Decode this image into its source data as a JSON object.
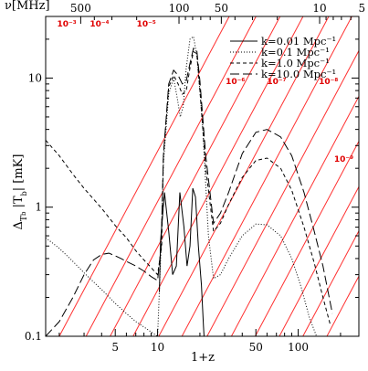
{
  "chart_data": {
    "type": "line",
    "xlabel": "1+z",
    "ylabel": "Δ_T_b |T_b| [mK]",
    "top_axis_label": "ν[MHz]",
    "xscale": "log",
    "yscale": "log",
    "xlim": [
      1.6,
      270
    ],
    "ylim": [
      0.1,
      30
    ],
    "x_ticks": [
      5,
      10,
      50,
      100
    ],
    "y_ticks": [
      0.1,
      1,
      10
    ],
    "y_tick_labels": [
      "0.1",
      "1",
      "10"
    ],
    "top_ticks": [
      500,
      100,
      50,
      10,
      5
    ],
    "colors": {
      "curves": "#000000",
      "reference_lines": "#ff3030",
      "reference_labels": "#e00000"
    },
    "legend_position": "top-right",
    "series": [
      {
        "name": "k=0.01 Mpc⁻¹",
        "style": "solid",
        "x": [
          10.3,
          10.5,
          11.2,
          12,
          12.8,
          13.6,
          14.4,
          15.4,
          16.2,
          17,
          17.8,
          18.6,
          19.5,
          20.5,
          21.2,
          21.4
        ],
        "y": [
          0.22,
          0.55,
          1.3,
          0.65,
          0.3,
          0.35,
          1.3,
          0.7,
          0.35,
          0.5,
          1.4,
          1.2,
          0.5,
          0.25,
          0.12,
          0.1
        ]
      },
      {
        "name": "k=0.1 Mpc⁻¹",
        "style": "dotted",
        "x": [
          1.6,
          2.0,
          2.5,
          3.0,
          4.0,
          5.0,
          6.0,
          7.0,
          8.0,
          9.0,
          10.0,
          10.6,
          11.0,
          12.0,
          13.0,
          13.8,
          14.5,
          15.2,
          16.0,
          17.0,
          18.0,
          19.0,
          20.0,
          21.0,
          22.0,
          23.0,
          25.0,
          28.0,
          32.0,
          40.0,
          50.0,
          60.0,
          75.0,
          90.0,
          105.0,
          120.0,
          135.0
        ],
        "y": [
          0.58,
          0.48,
          0.38,
          0.31,
          0.23,
          0.18,
          0.15,
          0.13,
          0.118,
          0.108,
          0.1,
          0.5,
          2.2,
          7.5,
          10.0,
          7.0,
          5.0,
          6.0,
          12.0,
          20.0,
          21.0,
          15.0,
          8.0,
          4.0,
          1.5,
          0.6,
          0.28,
          0.3,
          0.4,
          0.6,
          0.74,
          0.73,
          0.6,
          0.4,
          0.24,
          0.14,
          0.1
        ]
      },
      {
        "name": "k=1.0 Mpc⁻¹",
        "style": "short-dashed",
        "x": [
          1.6,
          2.0,
          2.5,
          3.0,
          4.0,
          5.0,
          6.0,
          7.0,
          8.0,
          9.0,
          10.0,
          10.7,
          11.0,
          12.0,
          13.0,
          14.0,
          15.0,
          16.0,
          17.0,
          18.0,
          19.0,
          20.0,
          22.0,
          25.0,
          28.0,
          32.0,
          40.0,
          50.0,
          60.0,
          75.0,
          90.0,
          110.0,
          130.0,
          150.0,
          170.0
        ],
        "y": [
          3.3,
          2.5,
          1.8,
          1.4,
          0.98,
          0.72,
          0.58,
          0.46,
          0.39,
          0.34,
          0.3,
          0.5,
          2.5,
          8.5,
          10.5,
          9.0,
          7.5,
          8.0,
          12.0,
          16.0,
          15.5,
          8.0,
          2.0,
          0.65,
          0.75,
          1.05,
          1.7,
          2.3,
          2.4,
          2.0,
          1.35,
          0.7,
          0.37,
          0.2,
          0.12
        ]
      },
      {
        "name": "k=10.0 Mpc⁻¹",
        "style": "long-dashed",
        "x": [
          1.6,
          2.0,
          2.5,
          3.0,
          3.5,
          4.0,
          4.5,
          5.0,
          5.5,
          6.0,
          7.0,
          8.0,
          9.0,
          10.0,
          10.6,
          11.0,
          12.0,
          13.0,
          14.0,
          15.0,
          16.0,
          17.0,
          18.0,
          19.0,
          20.0,
          22.0,
          25.0,
          28.0,
          32.0,
          40.0,
          50.0,
          60.0,
          75.0,
          90.0,
          110.0,
          130.0,
          150.0,
          175.0
        ],
        "y": [
          0.1,
          0.13,
          0.2,
          0.3,
          0.39,
          0.43,
          0.44,
          0.42,
          0.4,
          0.38,
          0.35,
          0.32,
          0.29,
          0.27,
          0.5,
          2.5,
          9.0,
          11.5,
          10.5,
          9.0,
          9.5,
          13.0,
          17.0,
          16.5,
          9.5,
          2.5,
          0.75,
          0.9,
          1.3,
          2.6,
          3.8,
          4.0,
          3.5,
          2.5,
          1.3,
          0.65,
          0.35,
          0.15
        ]
      }
    ],
    "reference_lines": {
      "labels": [
        "10⁻³",
        "10⁻⁴",
        "10⁻⁵",
        "10⁻⁶",
        "10⁻⁷",
        "10⁻⁸",
        "10⁻⁹"
      ],
      "extra_unlabeled": 5
    }
  }
}
